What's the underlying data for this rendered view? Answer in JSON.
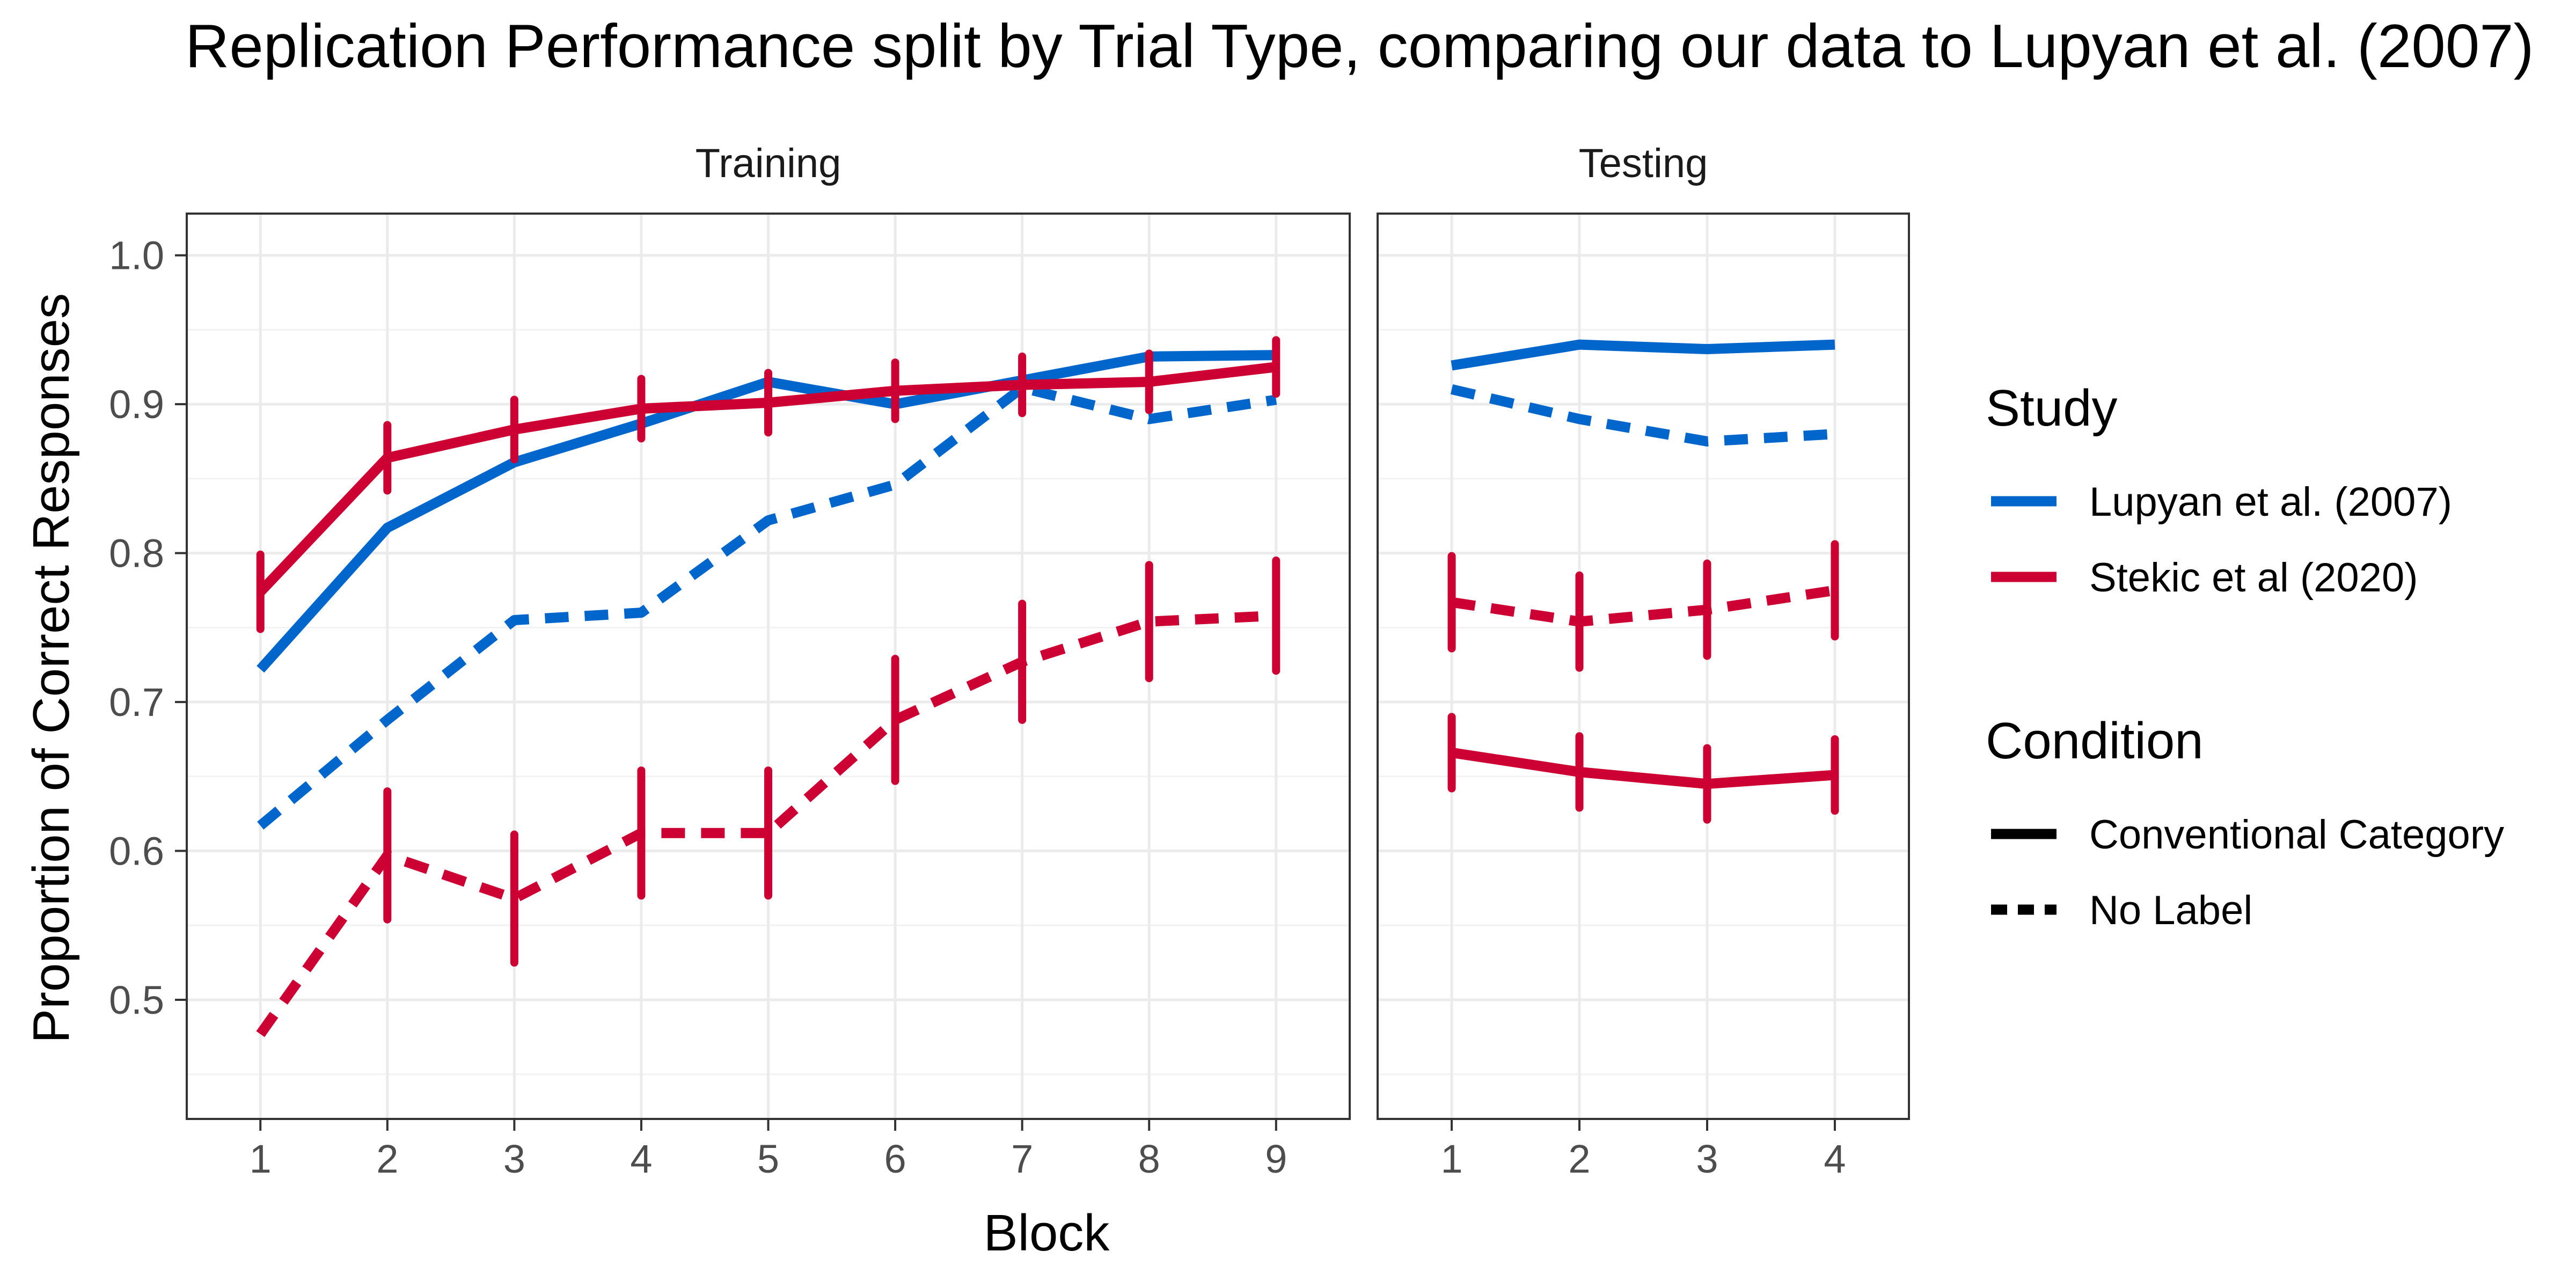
{
  "chart_data": {
    "type": "line",
    "title": "Replication Performance split by Trial Type, comparing our data to Lupyan et al. (2007)",
    "xlabel": "Block",
    "ylabel": "Proportion of Correct Responses",
    "ylim": [
      0.42,
      1.028
    ],
    "yticks": [
      0.5,
      0.6,
      0.7,
      0.8,
      0.9,
      1.0
    ],
    "ytick_labels": [
      "0.5",
      "0.6",
      "0.7",
      "0.8",
      "0.9",
      "1.0"
    ],
    "grid": true,
    "facets": [
      {
        "name": "Training",
        "x": [
          1,
          2,
          3,
          4,
          5,
          6,
          7,
          8,
          9
        ],
        "xlim": [
          0.42,
          9.58
        ],
        "series": [
          {
            "study": "Lupyan et al. (2007)",
            "condition": "Conventional Category",
            "color": "#0066CC",
            "dashed": false,
            "values": [
              0.722,
              0.817,
              0.861,
              0.887,
              0.915,
              0.9,
              0.916,
              0.932,
              0.933
            ],
            "error": null
          },
          {
            "study": "Lupyan et al. (2007)",
            "condition": "No Label",
            "color": "#0066CC",
            "dashed": true,
            "values": [
              0.617,
              0.688,
              0.755,
              0.76,
              0.822,
              0.846,
              0.911,
              0.89,
              0.903
            ],
            "error": null
          },
          {
            "study": "Stekic et al (2020)",
            "condition": "Conventional Category",
            "color": "#CC0033",
            "dashed": false,
            "values": [
              0.774,
              0.864,
              0.883,
              0.897,
              0.901,
              0.909,
              0.913,
              0.915,
              0.925
            ],
            "error": [
              0.025,
              0.022,
              0.02,
              0.02,
              0.02,
              0.019,
              0.019,
              0.019,
              0.018
            ]
          },
          {
            "study": "Stekic et al (2020)",
            "condition": "No Label",
            "color": "#CC0033",
            "dashed": true,
            "values": [
              0.477,
              0.597,
              0.568,
              0.612,
              0.612,
              0.688,
              0.727,
              0.754,
              0.758
            ],
            "error": [
              null,
              0.043,
              0.043,
              0.042,
              0.042,
              0.041,
              0.039,
              0.038,
              0.037
            ]
          }
        ]
      },
      {
        "name": "Testing",
        "x": [
          1,
          2,
          3,
          4
        ],
        "xlim": [
          0.42,
          4.58
        ],
        "series": [
          {
            "study": "Lupyan et al. (2007)",
            "condition": "Conventional Category",
            "color": "#0066CC",
            "dashed": false,
            "values": [
              0.926,
              0.94,
              0.937,
              0.94
            ],
            "error": null
          },
          {
            "study": "Lupyan et al. (2007)",
            "condition": "No Label",
            "color": "#0066CC",
            "dashed": true,
            "values": [
              0.91,
              0.89,
              0.875,
              0.88
            ],
            "error": null
          },
          {
            "study": "Stekic et al (2020)",
            "condition": "Conventional Category",
            "color": "#CC0033",
            "dashed": false,
            "values": [
              0.666,
              0.653,
              0.645,
              0.651
            ],
            "error": [
              0.024,
              0.024,
              0.024,
              0.024
            ]
          },
          {
            "study": "Stekic et al (2020)",
            "condition": "No Label",
            "color": "#CC0033",
            "dashed": true,
            "values": [
              0.767,
              0.754,
              0.762,
              0.775
            ],
            "error": [
              0.031,
              0.031,
              0.031,
              0.031
            ]
          }
        ]
      }
    ],
    "legend": {
      "placement": "right",
      "study_title": "Study",
      "study_items": [
        {
          "label": "Lupyan et al. (2007)",
          "color": "#0066CC"
        },
        {
          "label": "Stekic et al (2020)",
          "color": "#CC0033"
        }
      ],
      "condition_title": "Condition",
      "condition_items": [
        {
          "label": "Conventional Category",
          "dashed": false
        },
        {
          "label": "No Label",
          "dashed": true
        }
      ]
    }
  }
}
